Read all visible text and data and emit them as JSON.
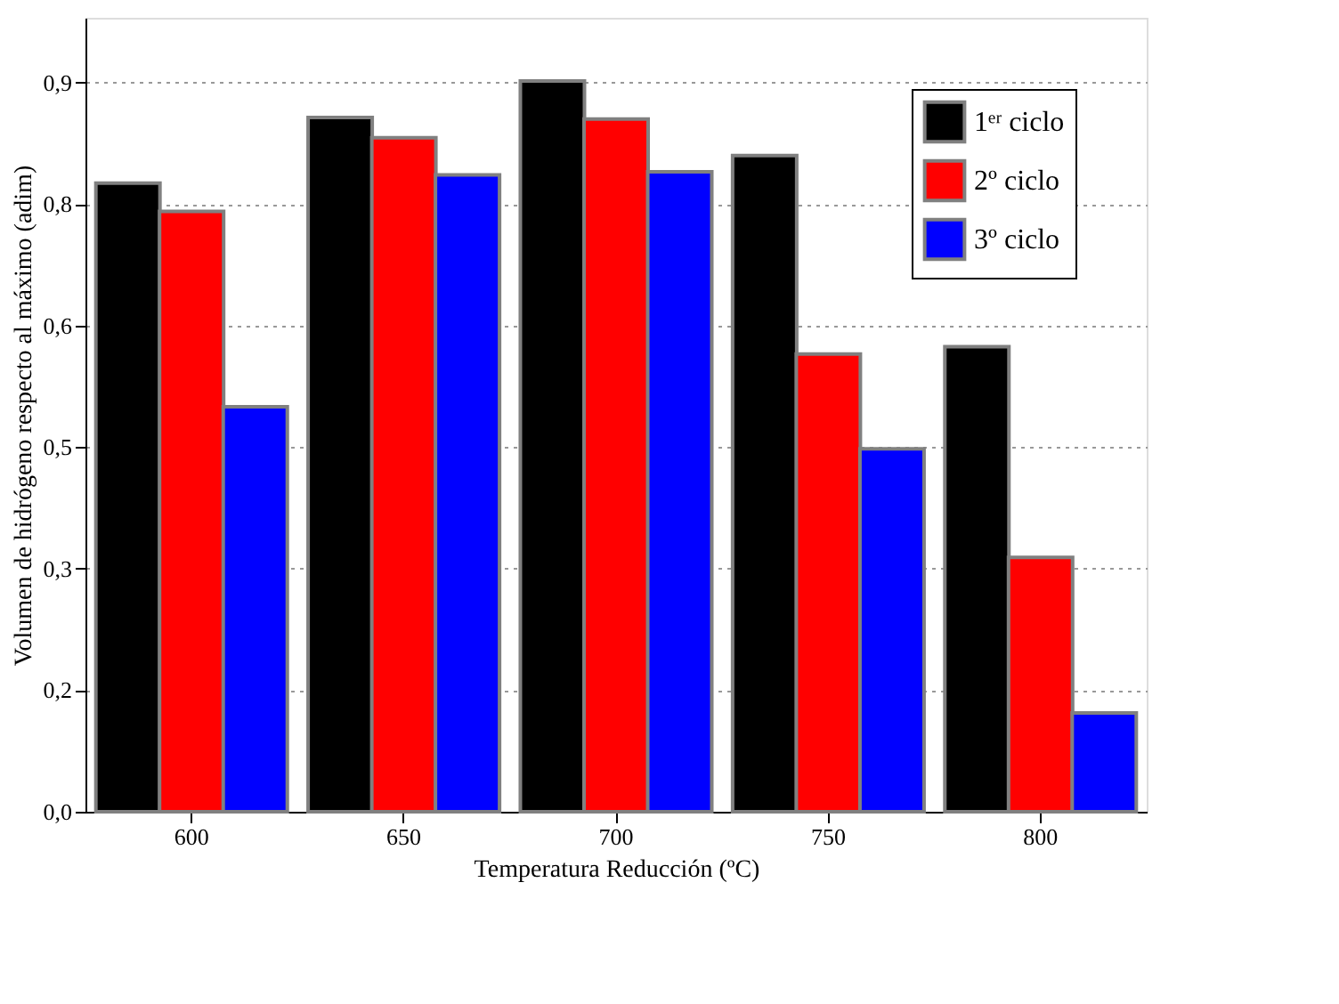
{
  "chart_data": {
    "type": "bar",
    "xlabel": "Temperatura Reducción (ºC)",
    "ylabel": "Volumen de hidrógeno respecto al máximo (adim)",
    "categories": [
      "600",
      "650",
      "700",
      "750",
      "800"
    ],
    "series": [
      {
        "name": "1ᵉʳ ciclo",
        "color": "#000000",
        "values": [
          0.776,
          0.857,
          0.902,
          0.81,
          0.574
        ]
      },
      {
        "name": "2º ciclo",
        "color": "#ff0000",
        "values": [
          0.741,
          0.832,
          0.855,
          0.565,
          0.314
        ]
      },
      {
        "name": "3º ciclo",
        "color": "#0000ff",
        "values": [
          0.5,
          0.786,
          0.79,
          0.448,
          0.122
        ]
      }
    ],
    "ylim": [
      0,
      0.98
    ],
    "yticks": [
      {
        "value": 0,
        "label": "0,0"
      },
      {
        "value": 0.15,
        "label": "0,2"
      },
      {
        "value": 0.3,
        "label": "0,3"
      },
      {
        "value": 0.45,
        "label": "0,5"
      },
      {
        "value": 0.6,
        "label": "0,6"
      },
      {
        "value": 0.75,
        "label": "0,8"
      },
      {
        "value": 0.9,
        "label": "0,9"
      }
    ],
    "grid": "y",
    "legend": "top right"
  }
}
